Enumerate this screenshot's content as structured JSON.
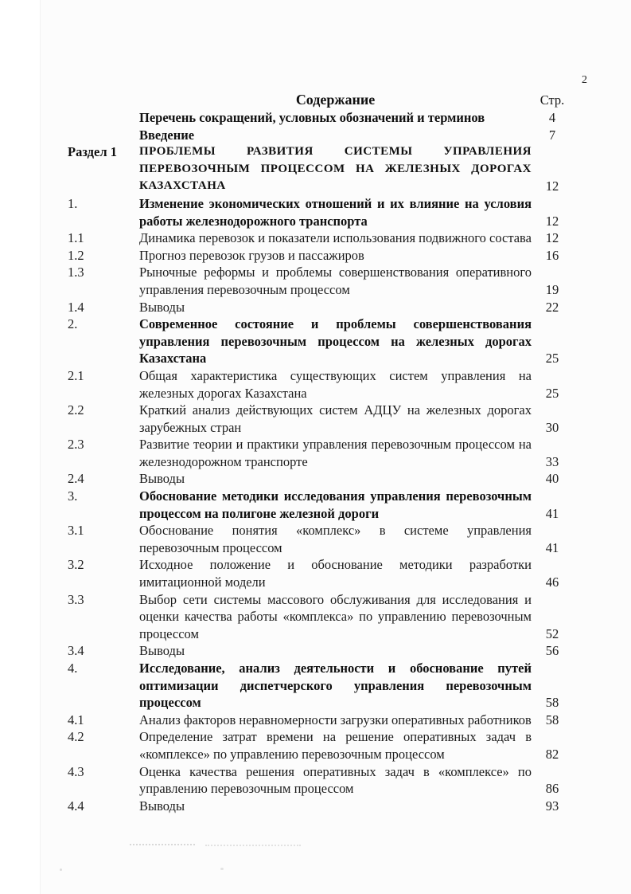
{
  "page": {
    "corner_number": "2",
    "header": {
      "title": "Содержание",
      "page_column_label": "Стр."
    }
  },
  "toc": {
    "entries": [
      {
        "num": "",
        "title": "Перечень сокращений, условных обозначений и терминов",
        "page": "4",
        "bold": true,
        "caps": false
      },
      {
        "num": "",
        "title": "Введение",
        "page": "7",
        "bold": true,
        "caps": false
      },
      {
        "num": "Раздел 1",
        "title": "ПРОБЛЕМЫ РАЗВИТИЯ СИСТЕМЫ УПРАВЛЕНИЯ ПЕРЕВОЗОЧНЫМ ПРОЦЕССОМ НА ЖЕЛЕЗНЫХ ДОРОГАХ КАЗАХСТАНА",
        "page": "12",
        "bold": true,
        "caps": true
      },
      {
        "num": "1.",
        "title": "Изменение экономических отношений и их влияние на условия работы железнодорожного транспорта",
        "page": "12",
        "bold": true,
        "caps": false
      },
      {
        "num": "1.1",
        "title": "Динамика перевозок и показатели использования подвижного состава",
        "page": "12",
        "bold": false,
        "caps": false
      },
      {
        "num": "1.2",
        "title": "Прогноз перевозок грузов и пассажиров",
        "page": "16",
        "bold": false,
        "caps": false
      },
      {
        "num": "1.3",
        "title": "Рыночные реформы и проблемы совершенствования оперативного управления перевозочным процессом",
        "page": "19",
        "bold": false,
        "caps": false
      },
      {
        "num": "1.4",
        "title": "Выводы",
        "page": "22",
        "bold": false,
        "caps": false
      },
      {
        "num": "2.",
        "title": "Современное состояние и проблемы совершенствования управления перевозочным процессом на железных дорогах Казахстана",
        "page": "25",
        "bold": true,
        "caps": false
      },
      {
        "num": "2.1",
        "title": "Общая характеристика существующих систем управления на железных дорогах Казахстана",
        "page": "25",
        "bold": false,
        "caps": false
      },
      {
        "num": "2.2",
        "title": "Краткий анализ действующих систем АДЦУ на железных дорогах зарубежных стран",
        "page": "30",
        "bold": false,
        "caps": false
      },
      {
        "num": "2.3",
        "title": "Развитие теории и практики управления перевозочным процессом на железнодорожном транспорте",
        "page": "33",
        "bold": false,
        "caps": false
      },
      {
        "num": "2.4",
        "title": "Выводы",
        "page": "40",
        "bold": false,
        "caps": false
      },
      {
        "num": "3.",
        "title": "Обоснование методики исследования управления перевозочным процессом на полигоне железной дороги",
        "page": "41",
        "bold": true,
        "caps": false
      },
      {
        "num": "3.1",
        "title": "Обоснование понятия «комплекс» в системе управления перевозочным процессом",
        "page": "41",
        "bold": false,
        "caps": false
      },
      {
        "num": "3.2",
        "title": "Исходное положение и обоснование методики разработки имитационной модели",
        "page": "46",
        "bold": false,
        "caps": false
      },
      {
        "num": "3.3",
        "title": "Выбор сети системы массового обслуживания для исследования и оценки качества работы «комплекса» по управлению перевозочным процессом",
        "page": "52",
        "bold": false,
        "caps": false
      },
      {
        "num": "3.4",
        "title": "Выводы",
        "page": "56",
        "bold": false,
        "caps": false
      },
      {
        "num": "4.",
        "title": "Исследование, анализ деятельности и обоснование путей оптимизации диспетчерского управления перевозочным процессом",
        "page": "58",
        "bold": true,
        "caps": false
      },
      {
        "num": "4.1",
        "title": "Анализ факторов неравномерности загрузки оперативных работников",
        "page": "58",
        "bold": false,
        "caps": false
      },
      {
        "num": "4.2",
        "title": "Определение затрат времени на решение оперативных задач в «комплексе» по управлению перевозочным процессом",
        "page": "82",
        "bold": false,
        "caps": false
      },
      {
        "num": "4.3",
        "title": "Оценка качества решения оперативных задач в «комплексе» по управлению перевозочным процессом",
        "page": "86",
        "bold": false,
        "caps": false
      },
      {
        "num": "4.4",
        "title": "Выводы",
        "page": "93",
        "bold": false,
        "caps": false
      }
    ]
  }
}
